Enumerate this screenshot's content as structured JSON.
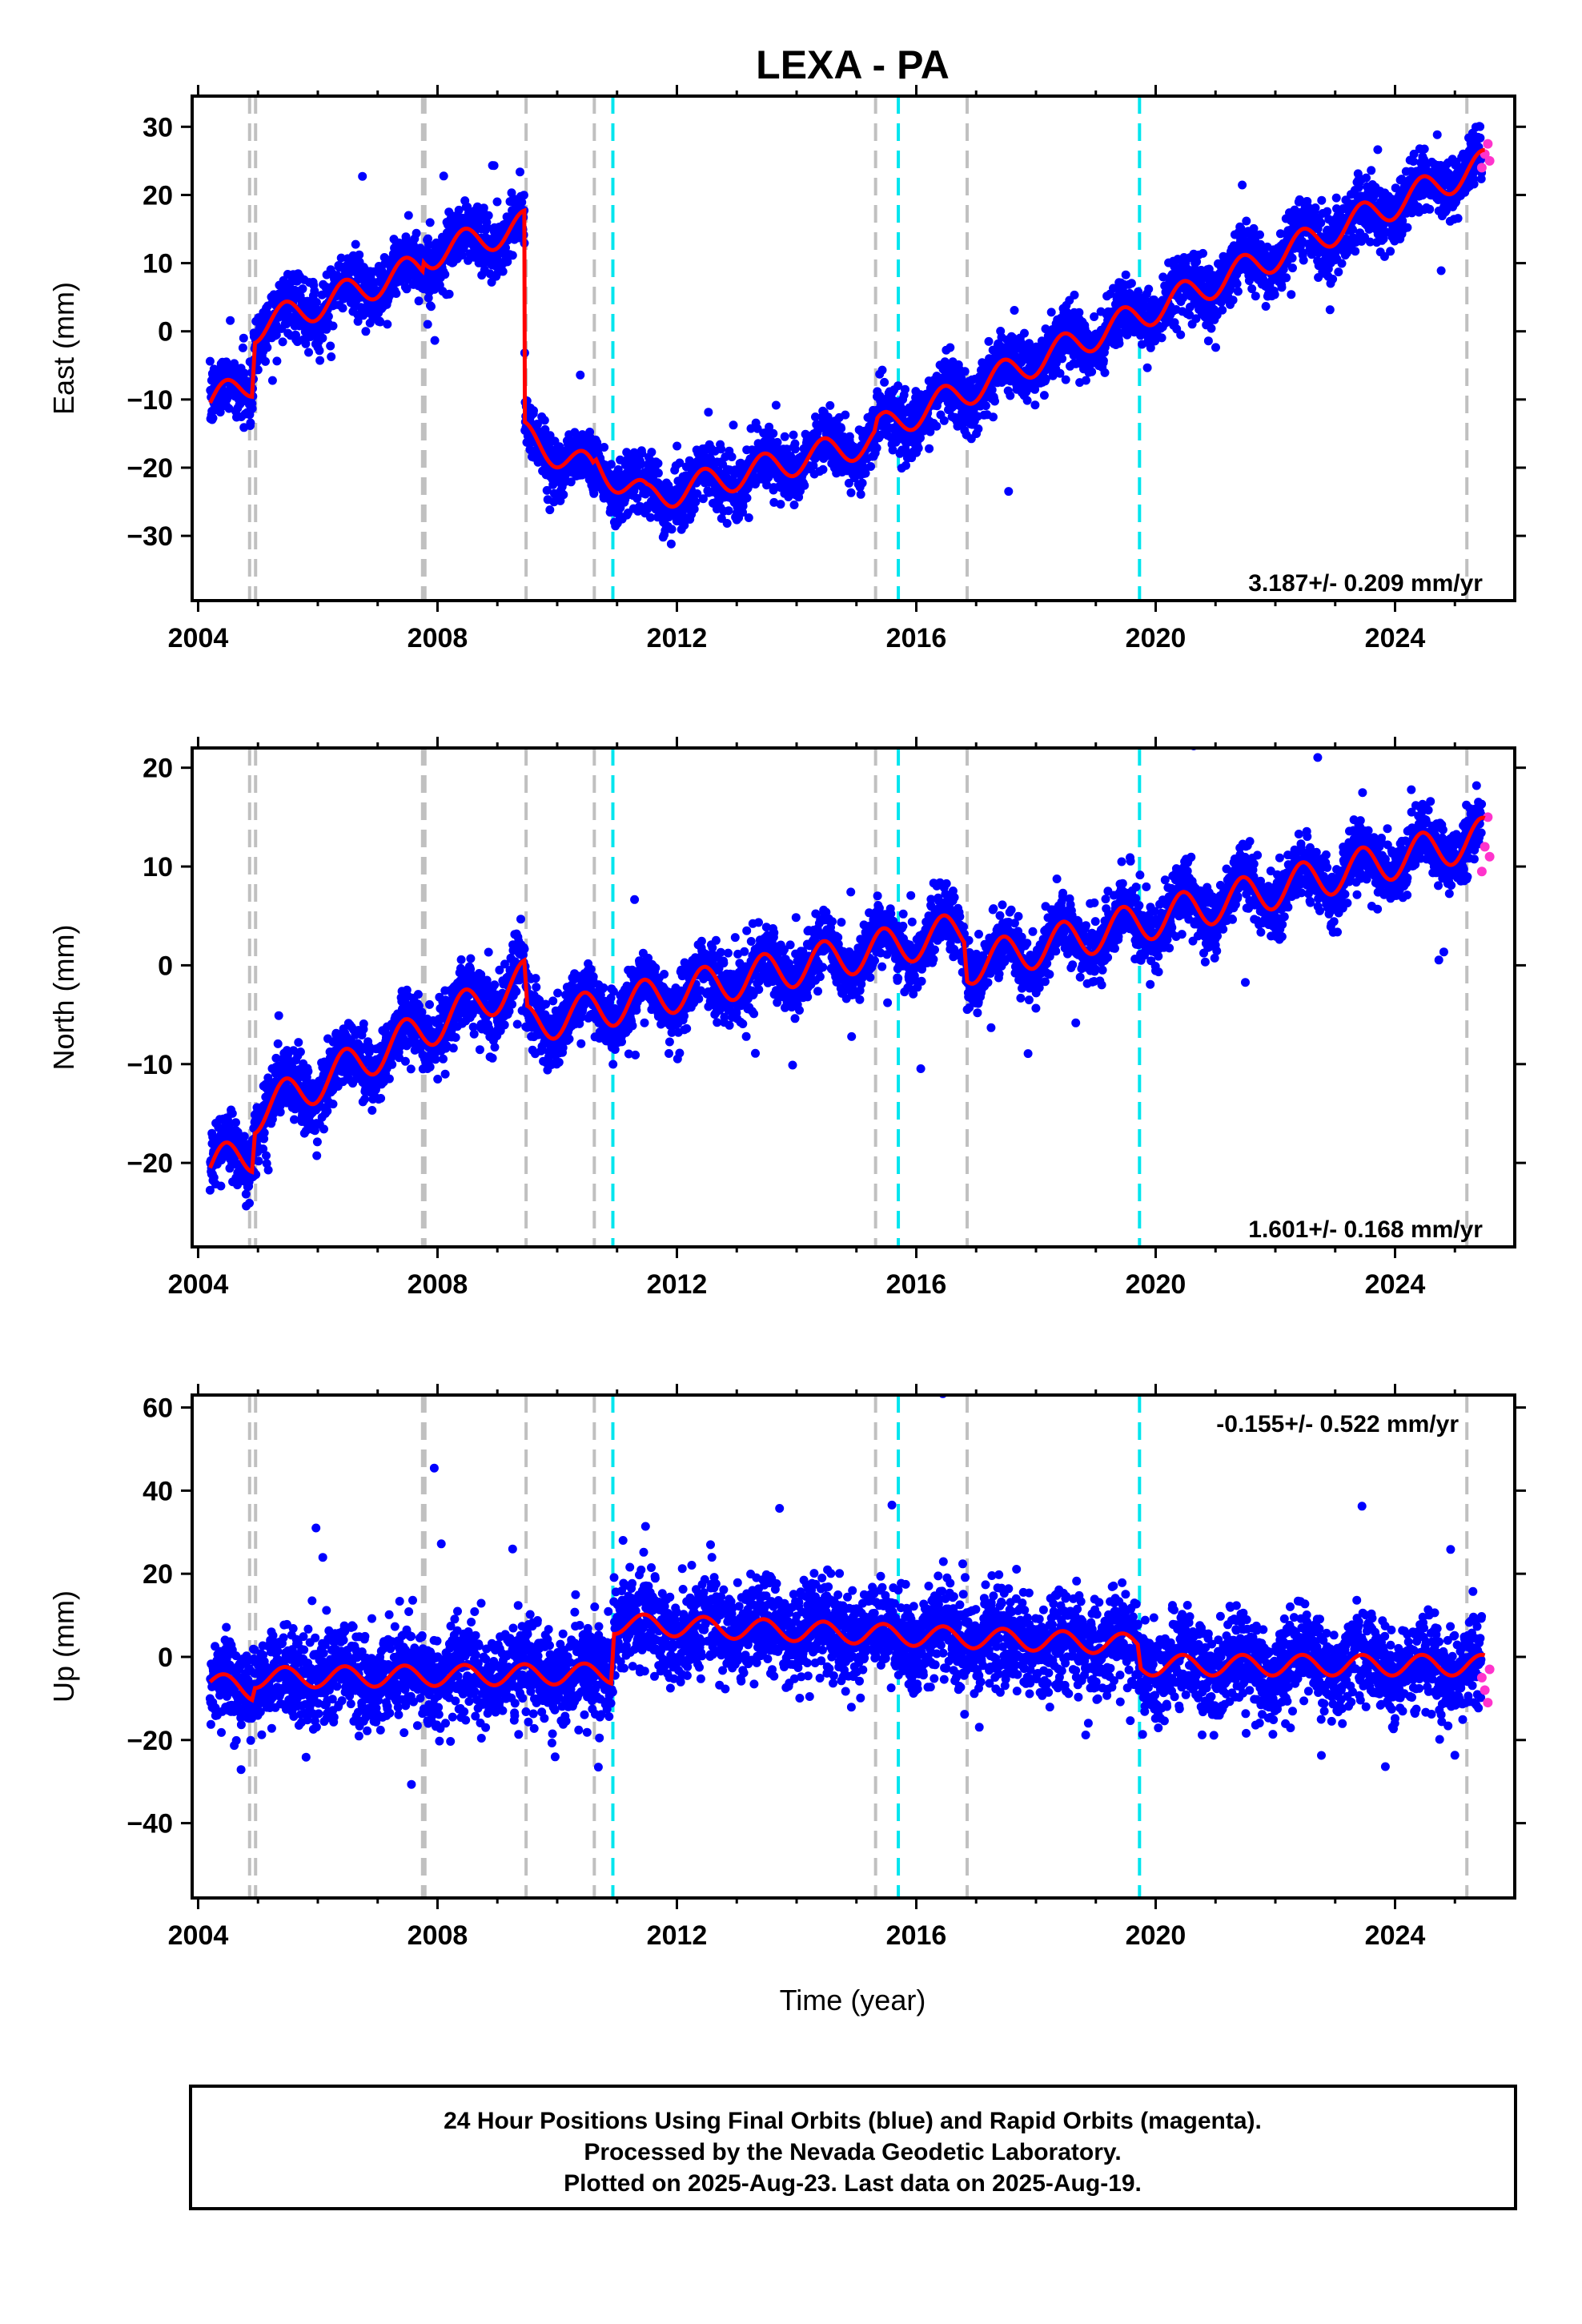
{
  "title": "LEXA - PA",
  "xlabel": "Time (year)",
  "colors": {
    "final_orbits": "#0000ff",
    "rapid_orbits": "#ff33cc",
    "model": "#ff0000",
    "equipment_change": "#c0c0c0",
    "earthquake": "#00e5ee"
  },
  "footer": {
    "line1": "24 Hour Positions Using Final Orbits (blue) and Rapid Orbits (magenta).",
    "line2": "Processed by the Nevada Geodetic Laboratory.",
    "line3": "Plotted on 2025-Aug-23. Last data on 2025-Aug-19."
  },
  "chart_data": [
    {
      "type": "scatter",
      "component": "east",
      "ylabel": "East (mm)",
      "xlim": [
        2003.9,
        2026.0
      ],
      "ylim": [
        -39.5,
        34.5
      ],
      "xticks": [
        2004,
        2008,
        2012,
        2016,
        2020,
        2024
      ],
      "yticks": [
        -30,
        -20,
        -10,
        0,
        10,
        20,
        30
      ],
      "rate_label": "3.187+/- 0.209 mm/yr",
      "vertical_lines": {
        "equipment": [
          2004.86,
          2004.96,
          2007.75,
          2007.79,
          2009.48,
          2010.62,
          2015.32,
          2016.85,
          2025.2
        ],
        "earthquake": [
          2010.93,
          2015.7,
          2019.73
        ]
      },
      "model_trend": [
        [
          2004.2,
          -10.5
        ],
        [
          2004.9,
          -7.5
        ],
        [
          2004.95,
          0.5
        ],
        [
          2007.75,
          9.5
        ],
        [
          2007.77,
          11
        ],
        [
          2009.45,
          15.5
        ],
        [
          2009.46,
          -15.5
        ],
        [
          2010.6,
          -20.5
        ],
        [
          2010.65,
          -19.5
        ],
        [
          2011.5,
          -24.5
        ],
        [
          2015.3,
          -16
        ],
        [
          2015.35,
          -14.5
        ],
        [
          2025.5,
          24.5
        ]
      ],
      "seasonal_amplitude": 2.2,
      "scatter_sigma": 2.2,
      "rapid_points": [
        [
          2025.45,
          24
        ],
        [
          2025.5,
          26
        ],
        [
          2025.55,
          27.5
        ],
        [
          2025.58,
          25
        ]
      ]
    },
    {
      "type": "scatter",
      "component": "north",
      "ylabel": "North (mm)",
      "xlim": [
        2003.9,
        2026.0
      ],
      "ylim": [
        -28.5,
        22.0
      ],
      "xticks": [
        2004,
        2008,
        2012,
        2016,
        2020,
        2024
      ],
      "yticks": [
        -20,
        -10,
        0,
        10,
        20
      ],
      "rate_label": "1.601+/- 0.168 mm/yr",
      "vertical_lines": {
        "equipment": [
          2004.86,
          2004.96,
          2007.75,
          2007.79,
          2009.48,
          2010.62,
          2015.32,
          2016.85,
          2025.2
        ],
        "earthquake": [
          2010.93,
          2015.7,
          2019.73
        ]
      },
      "model_trend": [
        [
          2004.2,
          -20.5
        ],
        [
          2004.9,
          -19
        ],
        [
          2004.95,
          -15
        ],
        [
          2009.45,
          -1.5
        ],
        [
          2009.5,
          -6
        ],
        [
          2016.8,
          3.5
        ],
        [
          2016.85,
          0
        ],
        [
          2025.5,
          13
        ]
      ],
      "seasonal_amplitude": 2.0,
      "scatter_sigma": 1.6,
      "rapid_points": [
        [
          2025.45,
          9.5
        ],
        [
          2025.5,
          12
        ],
        [
          2025.55,
          15
        ],
        [
          2025.58,
          11
        ]
      ]
    },
    {
      "type": "scatter",
      "component": "up",
      "ylabel": "Up (mm)",
      "xlim": [
        2003.9,
        2026.0
      ],
      "ylim": [
        -58.0,
        63.0
      ],
      "xticks": [
        2004,
        2008,
        2012,
        2016,
        2020,
        2024
      ],
      "yticks": [
        -40,
        -20,
        0,
        20,
        40,
        60
      ],
      "rate_label": "-0.155+/- 0.522 mm/yr",
      "vertical_lines": {
        "equipment": [
          2004.86,
          2004.96,
          2007.75,
          2007.79,
          2009.48,
          2010.62,
          2015.32,
          2016.85,
          2025.2
        ],
        "earthquake": [
          2010.93,
          2015.7,
          2019.73
        ]
      },
      "model_trend": [
        [
          2004.2,
          -6
        ],
        [
          2004.9,
          -8
        ],
        [
          2004.95,
          -5
        ],
        [
          2010.9,
          -4
        ],
        [
          2010.95,
          8
        ],
        [
          2019.7,
          3
        ],
        [
          2019.75,
          -2
        ],
        [
          2025.5,
          -2
        ]
      ],
      "seasonal_amplitude": 2.5,
      "scatter_sigma": 5.5,
      "rapid_points": [
        [
          2025.45,
          -5
        ],
        [
          2025.5,
          -8
        ],
        [
          2025.55,
          -11
        ],
        [
          2025.58,
          -3
        ]
      ]
    }
  ]
}
